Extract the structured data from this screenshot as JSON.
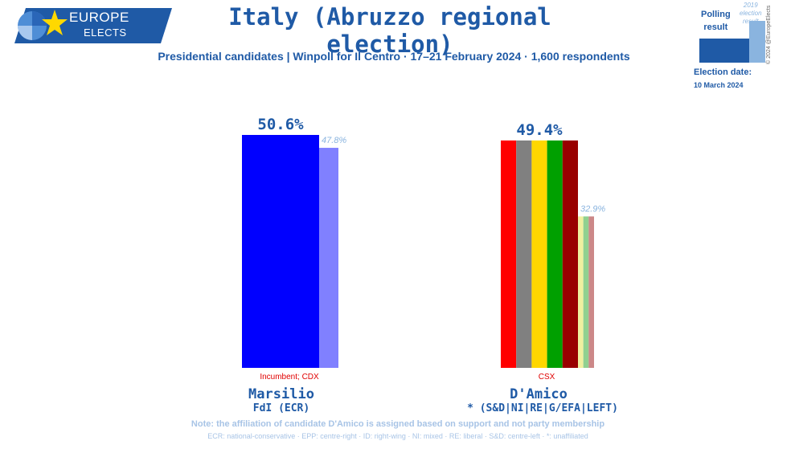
{
  "branding": {
    "logo_line1": "EUROPE",
    "logo_line2": "ELECTS",
    "copyright": "© 2024 @EuropeElects"
  },
  "header": {
    "title": "Italy (Abruzzo regional election)",
    "subtitle": "Presidential candidates | Winpoll for Il Centro · 17–21 February 2024 · 1,600 respondents"
  },
  "legend": {
    "polling_line1": "Polling",
    "polling_line2": "result",
    "prev_line1": "2019",
    "prev_line2": "election",
    "prev_line3": "result"
  },
  "election": {
    "label": "Election date:",
    "date": "10 March 2024"
  },
  "chart_data": {
    "type": "bar",
    "title": "Italy (Abruzzo regional election)",
    "ylim": [
      0,
      60
    ],
    "categories": [
      "Marsilio",
      "D'Amico"
    ],
    "series": [
      {
        "name": "Polling result",
        "values": [
          50.6,
          49.4
        ]
      },
      {
        "name": "2019 election result",
        "values": [
          47.8,
          32.9
        ]
      }
    ],
    "value_labels": [
      "50.6%",
      "49.4%"
    ],
    "prev_labels": [
      "47.8%",
      "32.9%"
    ],
    "candidates": [
      {
        "name": "Marsilio",
        "party": "FdI (ECR)",
        "tag": "Incumbent; CDX",
        "poll": 50.6,
        "prev": 47.8,
        "poll_colors": [
          "#0000ff"
        ],
        "prev_colors": [
          "#8080ff"
        ]
      },
      {
        "name": "D'Amico",
        "party": "* (S&D|NI|RE|G/EFA|LEFT)",
        "tag": "CSX",
        "poll": 49.4,
        "prev": 32.9,
        "poll_colors": [
          "#ff0000",
          "#808080",
          "#ffd700",
          "#00a000",
          "#990000"
        ],
        "prev_colors": [
          "#f0f0a0",
          "#90d090",
          "#cc8888"
        ]
      }
    ]
  },
  "notes": {
    "line1": "Note: the affiliation of candidate D'Amico is assigned based on support and not party membership",
    "line2": "ECR: national-conservative · EPP: centre-right · ID: right-wing · NI: mixed · RE: liberal · S&D: centre-left · *: unaffiliated"
  },
  "colors": {
    "brand": "#1f5aa6",
    "brand_light": "#8ab4df",
    "tag_red": "#e00000"
  }
}
